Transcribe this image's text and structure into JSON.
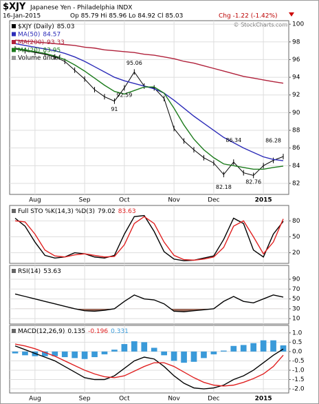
{
  "header": {
    "symbol": "$XJY",
    "name": "Japanese Yen - Philadelphia INDX",
    "date": "16-Jan-2015",
    "quote": "Op 85.79 Hi 85.96 Lo 84.92 Cl 85.03",
    "change": "Chg -1.22 (-1.42%)",
    "watermark": "© StockCharts.com"
  },
  "chart_data": [
    {
      "type": "line",
      "title": "$XJY",
      "categories": [
        null,
        null,
        "Aug",
        null,
        null,
        null,
        null,
        "Sep",
        null,
        null,
        null,
        "Oct",
        null,
        null,
        null,
        null,
        "Nov",
        null,
        null,
        null,
        "Dec",
        null,
        null,
        null,
        null,
        "2015",
        null,
        null
      ],
      "ylim": [
        80.75,
        100.4
      ],
      "yticks": [
        82,
        84,
        86,
        88,
        90,
        92,
        94,
        96,
        98,
        100
      ],
      "grid": true,
      "series": [
        {
          "name": "$XJY (Daily)",
          "color": "#000000",
          "values": [
            97.2,
            97.0,
            96.8,
            96.6,
            96.3,
            95.8,
            94.8,
            93.8,
            92.6,
            91.8,
            91.3,
            92.8,
            94.6,
            93.0,
            92.8,
            91.6,
            88.2,
            86.8,
            85.8,
            84.9,
            84.3,
            83.0,
            84.4,
            83.2,
            82.9,
            84.0,
            84.6,
            85.03
          ]
        },
        {
          "name": "MA(50)",
          "color": "#2b2bb8",
          "values": [
            97.8,
            97.6,
            97.4,
            97.2,
            97.0,
            96.7,
            96.3,
            95.8,
            95.2,
            94.6,
            94.0,
            93.6,
            93.3,
            93.0,
            92.7,
            92.2,
            91.4,
            90.5,
            89.6,
            88.8,
            88.0,
            87.2,
            86.6,
            86.0,
            85.5,
            85.0,
            84.7,
            84.57
          ]
        },
        {
          "name": "MA(200)",
          "color": "#b0203a",
          "values": [
            98.2,
            98.1,
            98.0,
            97.9,
            97.8,
            97.7,
            97.6,
            97.4,
            97.3,
            97.1,
            97.0,
            96.9,
            96.8,
            96.6,
            96.5,
            96.3,
            96.1,
            95.8,
            95.6,
            95.3,
            95.0,
            94.7,
            94.4,
            94.1,
            93.9,
            93.7,
            93.5,
            93.33
          ]
        },
        {
          "name": "MA(20)",
          "color": "#1a7a1a",
          "values": [
            97.3,
            97.1,
            96.9,
            96.7,
            96.4,
            96.0,
            95.4,
            94.7,
            93.9,
            93.1,
            92.4,
            92.1,
            92.5,
            92.9,
            92.9,
            92.2,
            90.5,
            88.6,
            87.0,
            85.8,
            84.9,
            84.2,
            84.0,
            83.8,
            83.6,
            83.6,
            83.8,
            83.95
          ]
        }
      ],
      "legend_extra": "Volume undef",
      "annotations": [
        {
          "at": 10,
          "value": 91.0
        },
        {
          "at": 11,
          "value": 92.59
        },
        {
          "at": 12,
          "value": 95.06
        },
        {
          "at": 21,
          "value": 82.18
        },
        {
          "at": 22,
          "value": 86.34
        },
        {
          "at": 24,
          "value": 82.76
        },
        {
          "at": 26,
          "value": 86.28
        }
      ]
    },
    {
      "type": "line",
      "title": "Full STO %K(14,3) %D(3)",
      "ylim": [
        0,
        109
      ],
      "yticks": [
        20,
        50,
        80
      ],
      "grid": true,
      "series": [
        {
          "name": "%K",
          "color": "#000000",
          "values": [
            85,
            70,
            40,
            15,
            10,
            12,
            20,
            18,
            12,
            10,
            15,
            55,
            88,
            90,
            60,
            22,
            8,
            5,
            6,
            10,
            14,
            45,
            85,
            75,
            25,
            12,
            55,
            79.02
          ]
        },
        {
          "name": "%D",
          "color": "#e02020",
          "values": [
            80,
            78,
            55,
            25,
            14,
            12,
            16,
            18,
            15,
            12,
            13,
            35,
            75,
            88,
            75,
            40,
            15,
            7,
            6,
            8,
            12,
            30,
            70,
            80,
            50,
            18,
            40,
            83.63
          ]
        }
      ]
    },
    {
      "type": "line",
      "title": "RSI(14)",
      "ylim": [
        -1,
        118
      ],
      "yticks": [
        10,
        30,
        50,
        70,
        90
      ],
      "grid": true,
      "shade_below": 30,
      "shade_color": "#9c6a5a",
      "series": [
        {
          "name": "RSI",
          "color": "#000000",
          "values": [
            60,
            55,
            50,
            45,
            40,
            35,
            30,
            26,
            25,
            27,
            30,
            45,
            58,
            50,
            48,
            40,
            25,
            24,
            26,
            28,
            30,
            45,
            55,
            45,
            42,
            50,
            58,
            53.63
          ]
        }
      ]
    },
    {
      "type": "combo",
      "title": "MACD(12,26,9)",
      "categories": [
        null,
        null,
        "Aug",
        null,
        null,
        null,
        null,
        "Sep",
        null,
        null,
        null,
        "Oct",
        null,
        null,
        null,
        null,
        "Nov",
        null,
        null,
        null,
        "Dec",
        null,
        null,
        null,
        null,
        "2015",
        null,
        null
      ],
      "ylim": [
        -2.22,
        1.4
      ],
      "yticks": [
        {
          "value": 1,
          "label": "1.0"
        },
        0.5,
        {
          "value": 0,
          "label": "0.0"
        },
        -0.5,
        {
          "value": -1,
          "label": "-1.0"
        },
        -1.5,
        {
          "value": -2,
          "label": "-2.0"
        }
      ],
      "grid": true,
      "series": [
        {
          "name": "MACD",
          "color": "#000000",
          "values": [
            0.3,
            0.1,
            -0.1,
            -0.3,
            -0.5,
            -0.8,
            -1.1,
            -1.4,
            -1.5,
            -1.5,
            -1.3,
            -0.9,
            -0.5,
            -0.3,
            -0.4,
            -0.8,
            -1.3,
            -1.7,
            -1.95,
            -2.0,
            -1.95,
            -1.8,
            -1.5,
            -1.3,
            -1.0,
            -0.6,
            -0.2,
            0.135
          ]
        },
        {
          "name": "Signal",
          "color": "#e02020",
          "values": [
            0.4,
            0.3,
            0.15,
            -0.05,
            -0.25,
            -0.5,
            -0.75,
            -1.0,
            -1.2,
            -1.35,
            -1.4,
            -1.3,
            -1.05,
            -0.8,
            -0.6,
            -0.6,
            -0.8,
            -1.1,
            -1.4,
            -1.65,
            -1.8,
            -1.85,
            -1.8,
            -1.65,
            -1.45,
            -1.2,
            -0.8,
            -0.196
          ]
        },
        {
          "name": "Histogram",
          "type": "bar",
          "color": "#3a9ad9",
          "values": [
            -0.1,
            -0.2,
            -0.25,
            -0.25,
            -0.25,
            -0.3,
            -0.35,
            -0.4,
            -0.3,
            -0.15,
            0.1,
            0.4,
            0.55,
            0.5,
            0.2,
            -0.2,
            -0.5,
            -0.6,
            -0.55,
            -0.35,
            -0.15,
            0.05,
            0.3,
            0.35,
            0.45,
            0.6,
            0.6,
            0.331
          ]
        }
      ]
    }
  ]
}
